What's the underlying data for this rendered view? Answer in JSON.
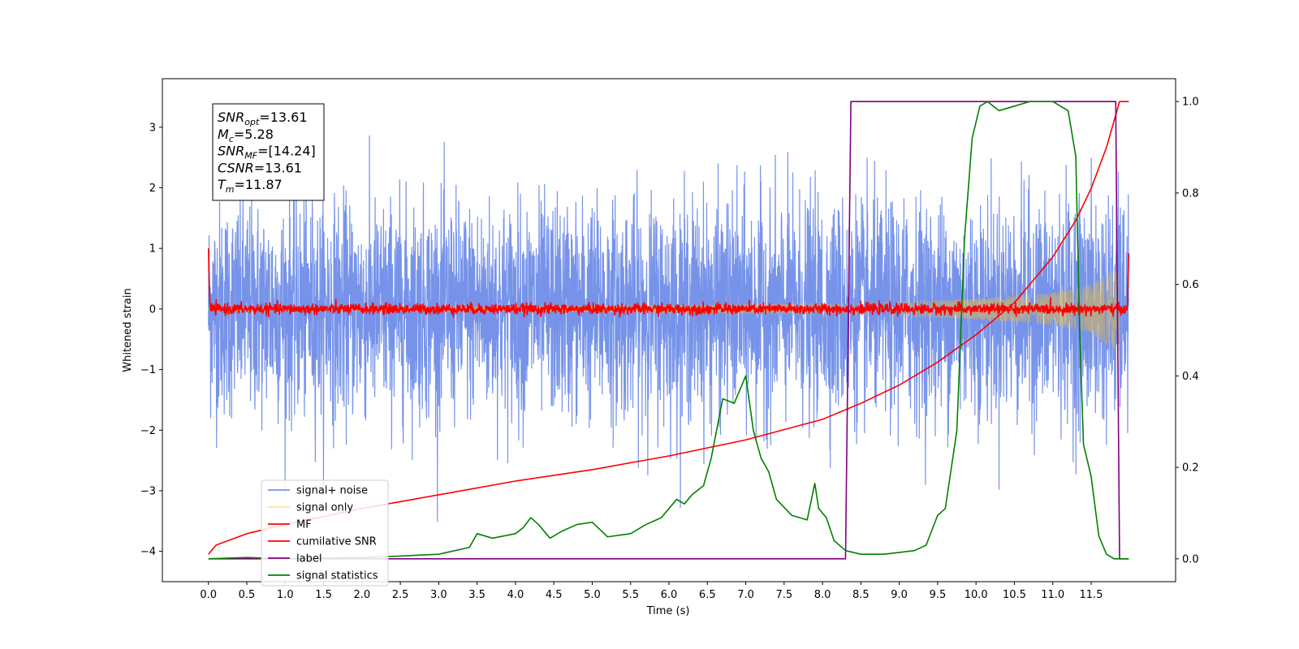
{
  "chart_data": {
    "type": "line",
    "title": "",
    "xlabel": "Time (s)",
    "ylabel": "Whitened strain",
    "xlim": [
      -0.6,
      12.6
    ],
    "ylim": [
      -4.5,
      3.8
    ],
    "y2lim": [
      -0.05,
      1.05
    ],
    "x_ticks": [
      0.0,
      0.5,
      1.0,
      1.5,
      2.0,
      2.5,
      3.0,
      3.5,
      4.0,
      4.5,
      5.0,
      5.5,
      6.0,
      6.5,
      7.0,
      7.5,
      8.0,
      8.5,
      9.0,
      9.5,
      10.0,
      10.5,
      11.0,
      11.5
    ],
    "x_tick_labels": [
      "0.0",
      "0.5",
      "1.0",
      "1.5",
      "2.0",
      "2.5",
      "3.0",
      "3.5",
      "4.0",
      "4.5",
      "5.0",
      "5.5",
      "6.0",
      "6.5",
      "7.0",
      "7.5",
      "8.0",
      "8.5",
      "9.0",
      "9.5",
      "10.0",
      "10.5",
      "11.0",
      "11.5"
    ],
    "y_ticks": [
      -4,
      -3,
      -2,
      -1,
      0,
      1,
      2,
      3
    ],
    "y_tick_labels": [
      "−4",
      "−3",
      "−2",
      "−1",
      "0",
      "1",
      "2",
      "3"
    ],
    "y2_ticks": [
      0.0,
      0.2,
      0.4,
      0.6,
      0.8,
      1.0
    ],
    "y2_tick_labels": [
      "0.0",
      "0.2",
      "0.4",
      "0.6",
      "0.8",
      "1.0"
    ],
    "grid": false,
    "legend_position": "lower-left",
    "stats_box": [
      {
        "main": "SNR",
        "sub": "opt",
        "value": "=13.61"
      },
      {
        "main": "M",
        "sub": "c",
        "value": "=5.28"
      },
      {
        "main": "SNR",
        "sub": "MF",
        "value": "=[14.24]"
      },
      {
        "main": "CSNR",
        "sub": "",
        "value": "=13.61"
      },
      {
        "main": "T",
        "sub": "m",
        "value": "=11.87"
      }
    ],
    "series": [
      {
        "name": "signal+ noise",
        "color": "#4169e1",
        "axis": "left",
        "kind": "noise",
        "envelope_t": [
          0.0,
          2.0,
          4.0,
          6.0,
          8.0,
          10.0,
          11.5,
          12.0
        ],
        "envelope_amp": [
          2.3,
          2.3,
          2.3,
          2.3,
          2.3,
          2.3,
          2.4,
          2.4
        ],
        "t_end": 11.99
      },
      {
        "name": "signal only",
        "color": "#f4c430",
        "axis": "left",
        "kind": "chirp",
        "envelope_t": [
          0.0,
          4.0,
          8.0,
          9.0,
          10.0,
          11.0,
          11.5,
          11.87
        ],
        "envelope_amp": [
          0.03,
          0.05,
          0.08,
          0.12,
          0.17,
          0.27,
          0.4,
          0.72
        ]
      },
      {
        "name": "MF",
        "color": "#ff0000",
        "axis": "left",
        "kind": "mf",
        "start": 1.0,
        "end": 0.92,
        "t_end": 11.99
      },
      {
        "name": "cumilative SNR",
        "color": "#ff0000",
        "axis": "right",
        "x": [
          0.0,
          0.1,
          0.5,
          1.0,
          2.0,
          3.0,
          4.0,
          5.0,
          6.0,
          7.0,
          8.0,
          8.5,
          9.0,
          9.5,
          10.0,
          10.5,
          11.0,
          11.3,
          11.5,
          11.7,
          11.87,
          11.99
        ],
        "y": [
          0.01,
          0.03,
          0.055,
          0.075,
          0.11,
          0.14,
          0.17,
          0.195,
          0.225,
          0.26,
          0.305,
          0.34,
          0.38,
          0.43,
          0.49,
          0.56,
          0.66,
          0.74,
          0.81,
          0.9,
          1.0,
          1.0
        ]
      },
      {
        "name": "label",
        "color": "#800080",
        "axis": "right",
        "x": [
          0.0,
          8.3,
          8.37,
          11.82,
          11.87,
          11.99
        ],
        "y": [
          0.0,
          0.0,
          1.0,
          1.0,
          0.0,
          0.0
        ]
      },
      {
        "name": "signal statistics",
        "color": "#008000",
        "axis": "right",
        "x": [
          0.0,
          0.5,
          1.0,
          2.0,
          2.5,
          3.0,
          3.4,
          3.5,
          3.7,
          4.0,
          4.1,
          4.2,
          4.3,
          4.45,
          4.6,
          4.8,
          5.0,
          5.2,
          5.5,
          5.7,
          5.9,
          6.0,
          6.1,
          6.2,
          6.3,
          6.45,
          6.55,
          6.7,
          6.85,
          7.0,
          7.1,
          7.2,
          7.3,
          7.4,
          7.6,
          7.8,
          7.9,
          7.95,
          8.05,
          8.15,
          8.3,
          8.5,
          8.8,
          9.2,
          9.35,
          9.5,
          9.6,
          9.75,
          9.85,
          9.95,
          10.05,
          10.15,
          10.3,
          10.5,
          10.7,
          11.0,
          11.2,
          11.3,
          11.35,
          11.4,
          11.5,
          11.6,
          11.7,
          11.8,
          11.99
        ],
        "y": [
          0.0,
          0.003,
          0.0,
          0.003,
          0.006,
          0.01,
          0.025,
          0.055,
          0.045,
          0.055,
          0.068,
          0.09,
          0.075,
          0.045,
          0.06,
          0.075,
          0.08,
          0.048,
          0.055,
          0.075,
          0.09,
          0.11,
          0.13,
          0.12,
          0.14,
          0.16,
          0.22,
          0.35,
          0.34,
          0.4,
          0.28,
          0.22,
          0.19,
          0.13,
          0.095,
          0.085,
          0.165,
          0.11,
          0.09,
          0.04,
          0.018,
          0.01,
          0.01,
          0.018,
          0.03,
          0.095,
          0.11,
          0.28,
          0.7,
          0.92,
          0.99,
          1.0,
          0.98,
          0.99,
          1.0,
          1.0,
          0.98,
          0.88,
          0.5,
          0.25,
          0.18,
          0.05,
          0.01,
          0.0,
          0.0
        ]
      }
    ]
  }
}
